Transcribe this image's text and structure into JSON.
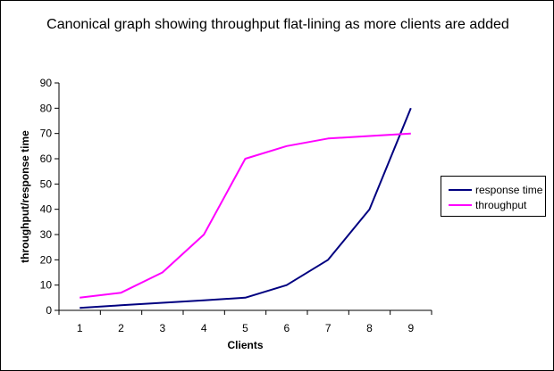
{
  "chart_data": {
    "type": "line",
    "title": "Canonical graph showing throughput flat-lining as more clients are added",
    "xlabel": "Clients",
    "ylabel": "throughput/response time",
    "categories": [
      1,
      2,
      3,
      4,
      5,
      6,
      7,
      8,
      9
    ],
    "ylim": [
      0,
      90
    ],
    "yticks": [
      0,
      10,
      20,
      30,
      40,
      50,
      60,
      70,
      80,
      90
    ],
    "grid": false,
    "legend_position": "right",
    "series": [
      {
        "name": "response time",
        "color": "#000080",
        "values": [
          1,
          2,
          3,
          4,
          5,
          10,
          20,
          40,
          80
        ]
      },
      {
        "name": "throughput",
        "color": "#ff00ff",
        "values": [
          5,
          7,
          15,
          30,
          60,
          65,
          68,
          69,
          70
        ]
      }
    ]
  }
}
